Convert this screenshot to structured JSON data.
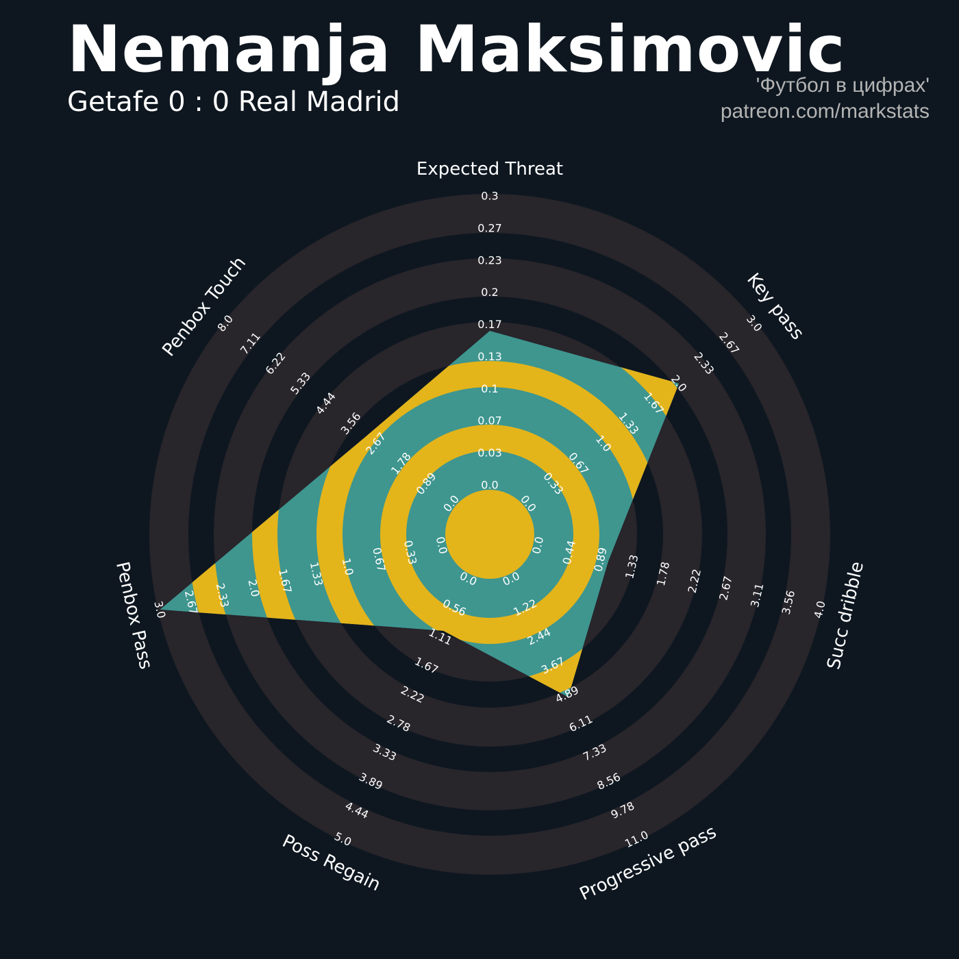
{
  "header": {
    "title": "Nemanja Maksimovic",
    "subtitle": "Getafe 0 : 0 Real Madrid",
    "credit_line1": "'Футбол в цифрах'",
    "credit_line2": "patreon.com/markstats"
  },
  "colors": {
    "background": "#0e1720",
    "ring_outside": "#28252b",
    "ring_inside_a": "#3e968f",
    "ring_inside_b": "#e4b41b"
  },
  "chart_data": {
    "type": "radar",
    "title": "Nemanja Maksimovic",
    "params": [
      "Expected Threat",
      "Key pass",
      "Succ dribble",
      "Progressive pass",
      "Poss Regain",
      "Penbox Pass",
      "Penbox Touch"
    ],
    "min": [
      0,
      0,
      0,
      0,
      0,
      0,
      0
    ],
    "max": [
      0.3,
      3.0,
      4.0,
      11.0,
      5.0,
      3.0,
      8.0
    ],
    "values": [
      0.16,
      2.0,
      1.0,
      5.0,
      1.0,
      3.0,
      3.0
    ],
    "tick_labels": [
      [
        "0.0",
        "0.03",
        "0.07",
        "0.1",
        "0.13",
        "0.17",
        "0.2",
        "0.23",
        "0.27",
        "0.3"
      ],
      [
        "0.0",
        "0.33",
        "0.67",
        "1.0",
        "1.33",
        "1.67",
        "2.0",
        "2.33",
        "2.67",
        "3.0"
      ],
      [
        "0.0",
        "0.44",
        "0.89",
        "1.33",
        "1.78",
        "2.22",
        "2.67",
        "3.11",
        "3.56",
        "4.0"
      ],
      [
        "0.0",
        "1.22",
        "2.44",
        "3.67",
        "4.89",
        "6.11",
        "7.33",
        "8.56",
        "9.78",
        "11.0"
      ],
      [
        "0.0",
        "0.56",
        "1.11",
        "1.67",
        "2.22",
        "2.78",
        "3.33",
        "3.89",
        "4.44",
        "5.0"
      ],
      [
        "0.0",
        "0.33",
        "0.67",
        "1.0",
        "1.33",
        "1.67",
        "2.0",
        "2.33",
        "2.67",
        "3.0"
      ],
      [
        "0.0",
        "0.89",
        "1.78",
        "2.67",
        "3.56",
        "4.44",
        "5.33",
        "6.22",
        "7.11",
        "8.0"
      ]
    ],
    "grid": false,
    "legend": "none"
  }
}
